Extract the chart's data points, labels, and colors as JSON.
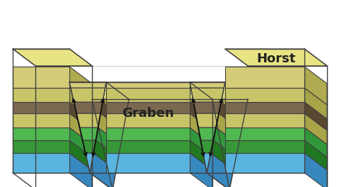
{
  "background_color": "#ffffff",
  "graben_label": "Graben",
  "horst_label": "Horst",
  "outline_color": "#404040",
  "arrow_color": "#111111",
  "label_color": "#222222",
  "graben_font_size": 13,
  "horst_font_size": 13,
  "layers_face": [
    "#5ab4e0",
    "#389838",
    "#50b850",
    "#c8c468",
    "#7a6850",
    "#c8c468",
    "#d4cc78"
  ],
  "layers_side": [
    "#3888c0",
    "#207820",
    "#30983a",
    "#a8a448",
    "#5a4830",
    "#a8a448",
    "#b0aa50"
  ],
  "layers_top": [
    "#78c8f0",
    "#50b050",
    "#68cc68",
    "#dcd878",
    "#9a7858",
    "#dcd878",
    "#e8e484"
  ],
  "lh": [
    28,
    18,
    18,
    20,
    16,
    20,
    30
  ]
}
